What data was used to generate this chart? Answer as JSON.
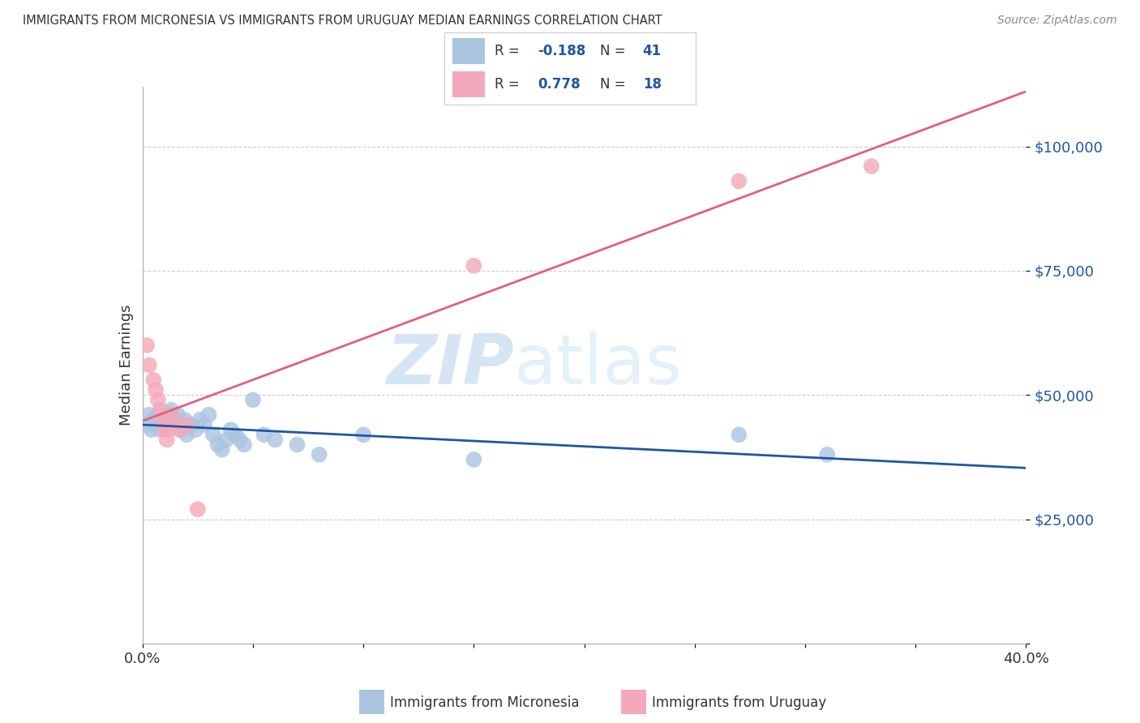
{
  "title": "IMMIGRANTS FROM MICRONESIA VS IMMIGRANTS FROM URUGUAY MEDIAN EARNINGS CORRELATION CHART",
  "source": "Source: ZipAtlas.com",
  "ylabel": "Median Earnings",
  "xlim": [
    0,
    0.4
  ],
  "ylim": [
    0,
    112000
  ],
  "yticks": [
    0,
    25000,
    50000,
    75000,
    100000
  ],
  "ytick_labels": [
    "",
    "$25,000",
    "$50,000",
    "$75,000",
    "$100,000"
  ],
  "xticks": [
    0.0,
    0.05,
    0.1,
    0.15,
    0.2,
    0.25,
    0.3,
    0.35,
    0.4
  ],
  "micronesia_color": "#aac4e0",
  "micronesia_line_color": "#2055a4",
  "uruguay_color": "#f4a8bb",
  "uruguay_line_color": "#e06080",
  "R_micronesia": -0.188,
  "N_micronesia": 41,
  "R_uruguay": 0.778,
  "N_uruguay": 18,
  "legend_color": "#2055a4",
  "mic_label": "Immigrants from Micronesia",
  "uru_label": "Immigrants from Uruguay",
  "micronesia_x": [
    0.002,
    0.003,
    0.004,
    0.005,
    0.006,
    0.007,
    0.008,
    0.009,
    0.01,
    0.011,
    0.012,
    0.013,
    0.014,
    0.015,
    0.016,
    0.017,
    0.018,
    0.019,
    0.02,
    0.022,
    0.024,
    0.026,
    0.028,
    0.03,
    0.032,
    0.034,
    0.036,
    0.038,
    0.04,
    0.042,
    0.044,
    0.046,
    0.05,
    0.055,
    0.06,
    0.07,
    0.08,
    0.1,
    0.15,
    0.27,
    0.31
  ],
  "micronesia_y": [
    44000,
    46000,
    43000,
    45000,
    44000,
    46000,
    43000,
    44000,
    45000,
    44000,
    46000,
    47000,
    45000,
    44000,
    46000,
    43000,
    44000,
    45000,
    42000,
    44000,
    43000,
    45000,
    44000,
    46000,
    42000,
    40000,
    39000,
    41000,
    43000,
    42000,
    41000,
    40000,
    49000,
    42000,
    41000,
    40000,
    38000,
    42000,
    37000,
    42000,
    38000
  ],
  "uruguay_x": [
    0.002,
    0.003,
    0.005,
    0.006,
    0.007,
    0.008,
    0.009,
    0.01,
    0.011,
    0.012,
    0.013,
    0.015,
    0.017,
    0.02,
    0.025,
    0.15,
    0.27,
    0.33
  ],
  "uruguay_y": [
    60000,
    56000,
    53000,
    51000,
    49000,
    47000,
    45000,
    43000,
    41000,
    43000,
    46000,
    44000,
    43000,
    44000,
    27000,
    76000,
    93000,
    96000
  ],
  "watermark_zip": "ZIP",
  "watermark_atlas": "atlas",
  "background_color": "#ffffff",
  "grid_color": "#cccccc"
}
